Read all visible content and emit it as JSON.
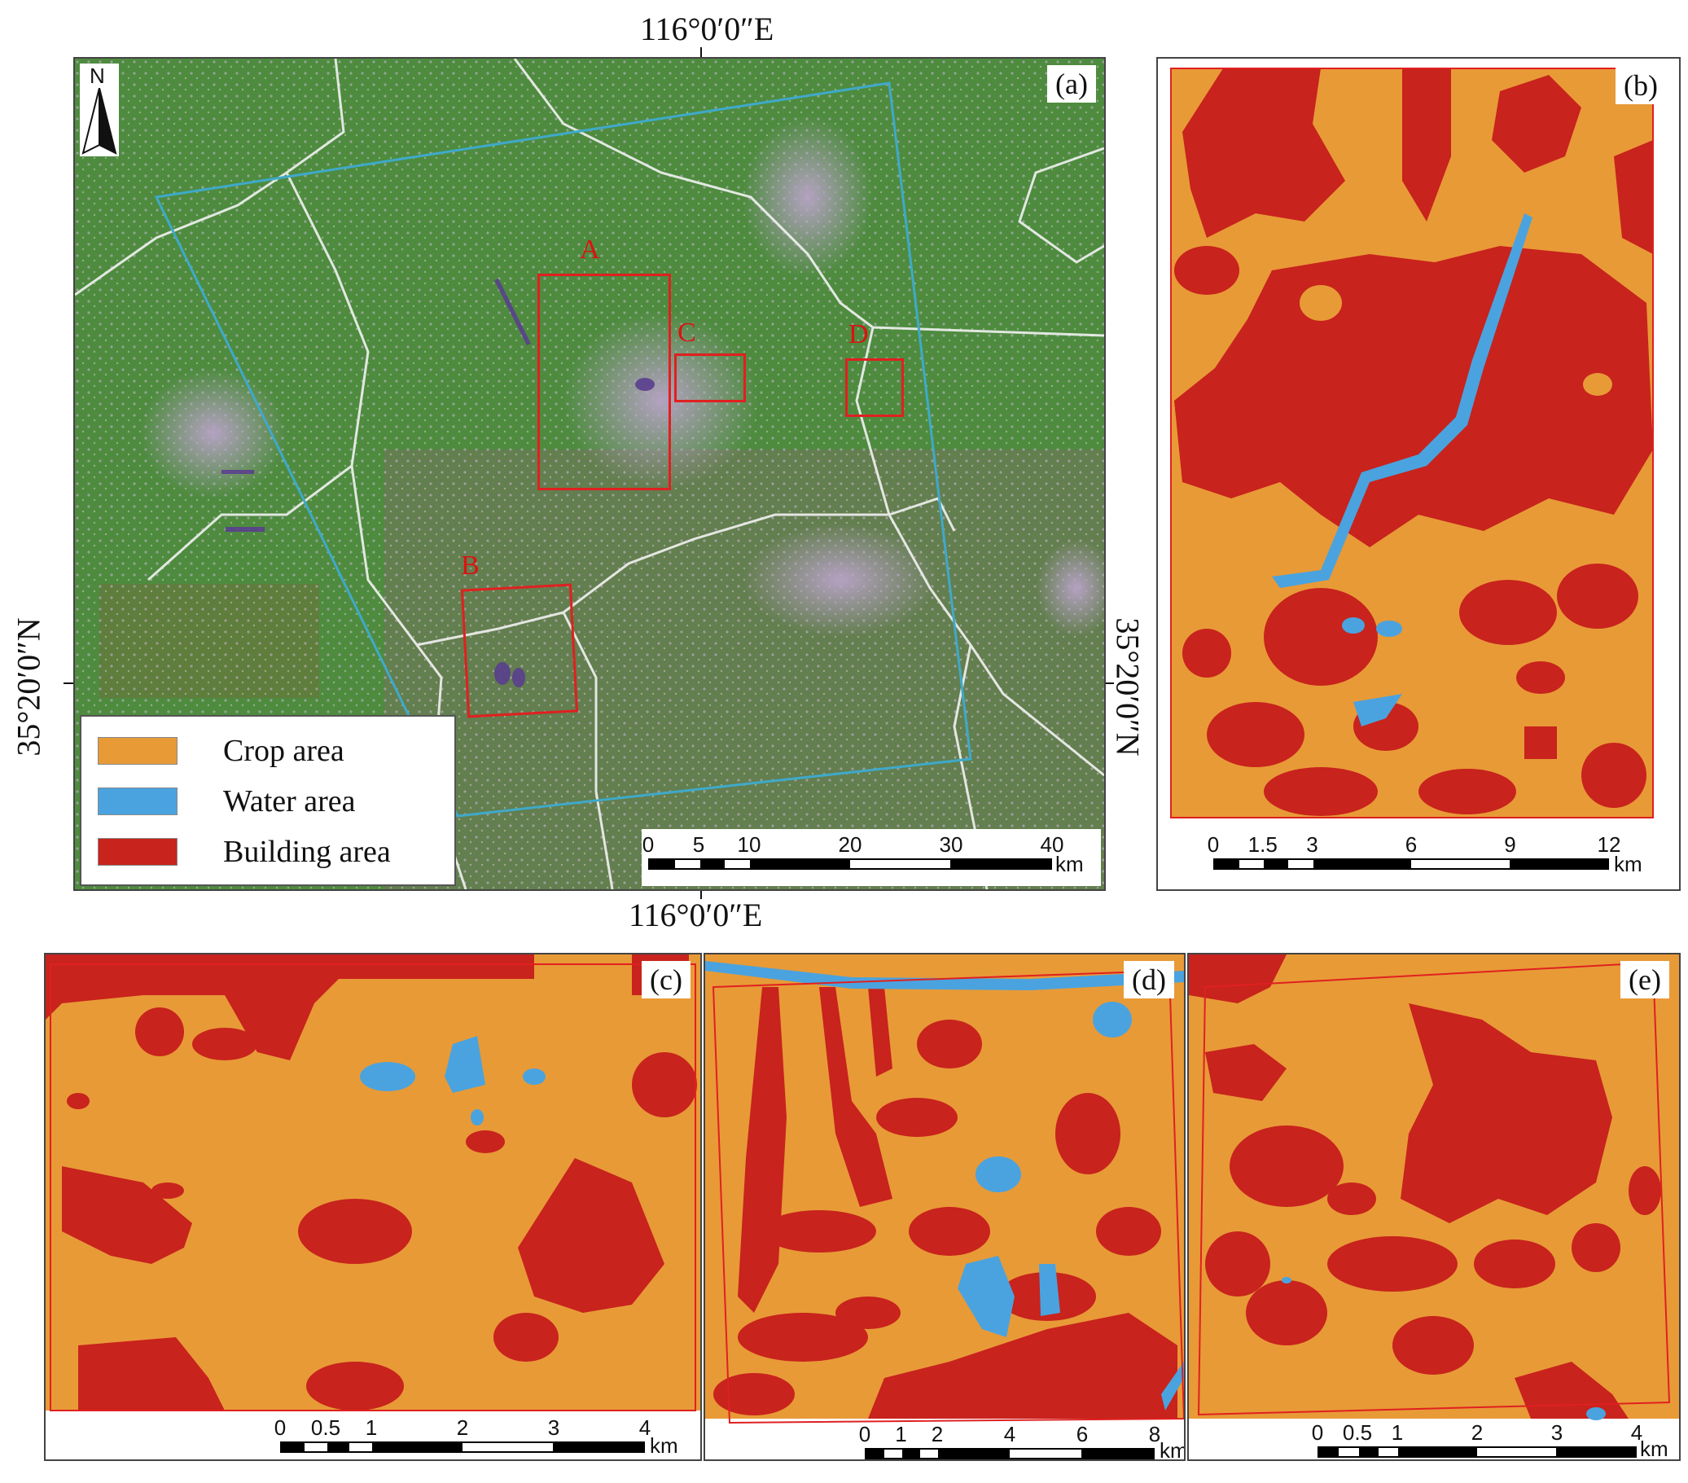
{
  "coords": {
    "top_lon": "116°0′0″E",
    "bottom_lon": "116°0′0″E",
    "left_lat": "35°20′0″N",
    "right_lat": "35°20′0″N"
  },
  "panels": {
    "a": {
      "label": "(a)",
      "north": "N"
    },
    "b": {
      "label": "(b)"
    },
    "c": {
      "label": "(c)"
    },
    "d": {
      "label": "(d)"
    },
    "e": {
      "label": "(e)"
    }
  },
  "regions": [
    "A",
    "B",
    "C",
    "D"
  ],
  "legend": {
    "items": [
      {
        "label": "Crop area",
        "color": "#E89A37"
      },
      {
        "label": "Water area",
        "color": "#4AA3DF"
      },
      {
        "label": "Building area",
        "color": "#C8231D"
      }
    ]
  },
  "colors": {
    "crop": "#E89A37",
    "water": "#4AA3DF",
    "building": "#C8231D",
    "vegetation": "#4E8B3F",
    "region_box": "#E02020",
    "study_boundary": "#3FA9C9"
  },
  "scalebars": {
    "a": {
      "ticks": [
        "0",
        "5",
        "10",
        "20",
        "30",
        "40"
      ],
      "unit": "km"
    },
    "b": {
      "ticks": [
        "0",
        "1.5",
        "3",
        "6",
        "9",
        "12"
      ],
      "unit": "km"
    },
    "c": {
      "ticks": [
        "0",
        "0.5",
        "1",
        "2",
        "3",
        "4"
      ],
      "unit": "km"
    },
    "d": {
      "ticks": [
        "0",
        "1",
        "2",
        "4",
        "6",
        "8"
      ],
      "unit": "km"
    },
    "e": {
      "ticks": [
        "0",
        "0.5",
        "1",
        "2",
        "3",
        "4"
      ],
      "unit": "km"
    }
  }
}
